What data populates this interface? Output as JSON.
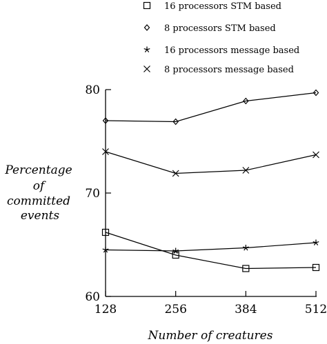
{
  "chart_data": {
    "type": "line",
    "title": "",
    "xlabel": "Number of creatures",
    "ylabel_lines": [
      "Percentage",
      "of",
      "committed",
      "events"
    ],
    "x": [
      128,
      256,
      384,
      512
    ],
    "xlim": [
      128,
      512
    ],
    "ylim": [
      60,
      80
    ],
    "x_ticks": [
      "128",
      "256",
      "384",
      "512"
    ],
    "y_ticks": [
      "60",
      "70",
      "80"
    ],
    "y_tick_values": [
      60,
      70,
      80
    ],
    "legend_position": "top",
    "grid": false,
    "series": [
      {
        "name": "16 processors STM based",
        "marker": "square",
        "values": [
          66.2,
          64.0,
          62.7,
          62.8
        ]
      },
      {
        "name": "8 processors STM based",
        "marker": "diamond",
        "values": [
          77.0,
          76.9,
          78.9,
          79.7
        ]
      },
      {
        "name": "16 processors message based",
        "marker": "star",
        "values": [
          64.5,
          64.4,
          64.7,
          65.2
        ]
      },
      {
        "name": "8 processors message based",
        "marker": "cross",
        "values": [
          74.0,
          71.9,
          72.2,
          73.7
        ]
      }
    ]
  }
}
